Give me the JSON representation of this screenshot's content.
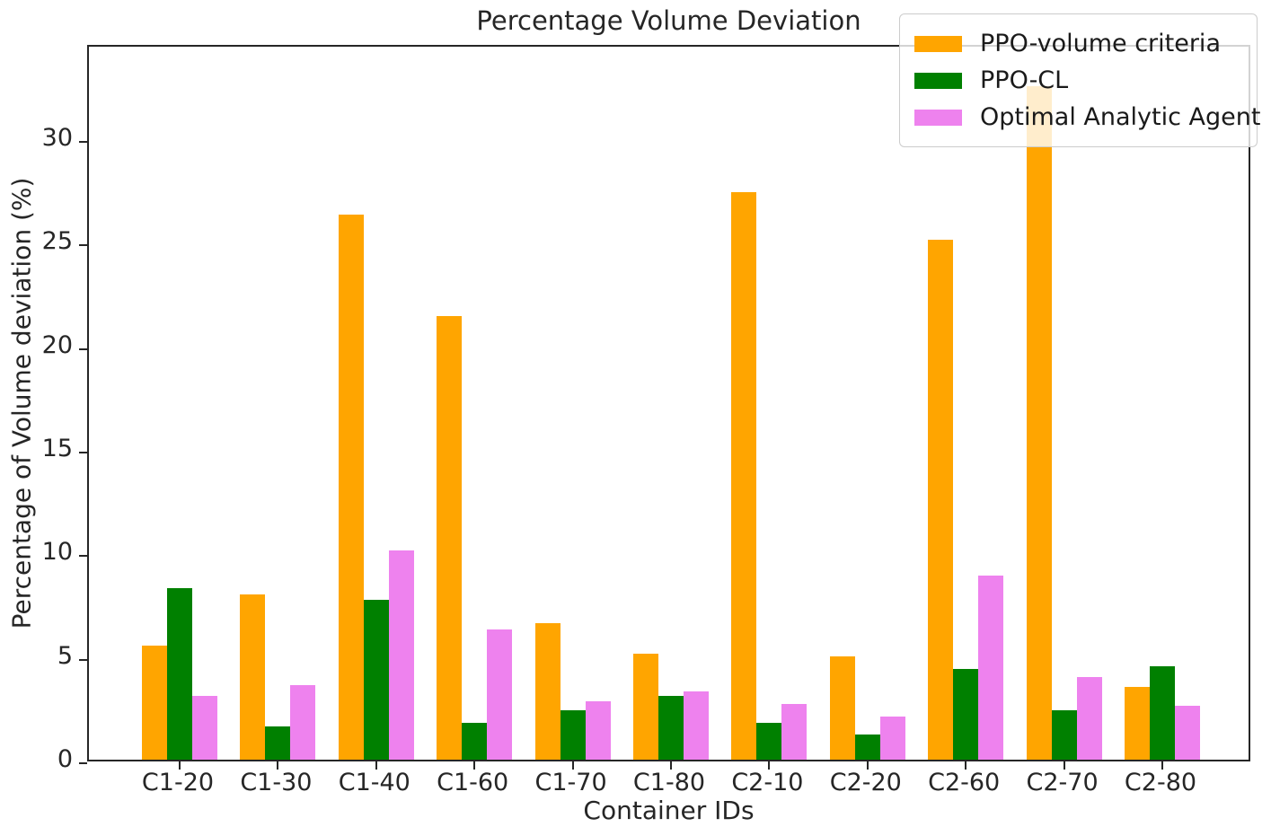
{
  "chart_data": {
    "type": "bar",
    "title": "Percentage Volume Deviation",
    "xlabel": "Container IDs",
    "ylabel": "Percentage of Volume deviation (%)",
    "categories": [
      "C1-20",
      "C1-30",
      "C1-40",
      "C1-60",
      "C1-70",
      "C1-80",
      "C2-10",
      "C2-20",
      "C2-60",
      "C2-70",
      "C2-80"
    ],
    "series": [
      {
        "name": "PPO-volume criteria",
        "color": "#FFA500",
        "values": [
          5.5,
          8.0,
          26.3,
          21.4,
          6.6,
          5.1,
          27.4,
          5.0,
          25.1,
          32.5,
          3.5
        ]
      },
      {
        "name": "PPO-CL",
        "color": "#008000",
        "values": [
          8.3,
          1.6,
          7.7,
          1.8,
          2.4,
          3.1,
          1.8,
          1.2,
          4.4,
          2.4,
          4.5
        ]
      },
      {
        "name": "Optimal Analytic Agent",
        "color": "#EE82EE",
        "values": [
          3.1,
          3.6,
          10.1,
          6.3,
          2.8,
          3.3,
          2.7,
          2.1,
          8.9,
          4.0,
          2.6
        ]
      }
    ],
    "yticks": [
      0,
      5,
      10,
      15,
      20,
      25,
      30
    ],
    "ylim": [
      0,
      34.6
    ],
    "grid": false,
    "legend_position": "upper right",
    "background_color": "#ffffff",
    "axis_color": "#262626"
  }
}
